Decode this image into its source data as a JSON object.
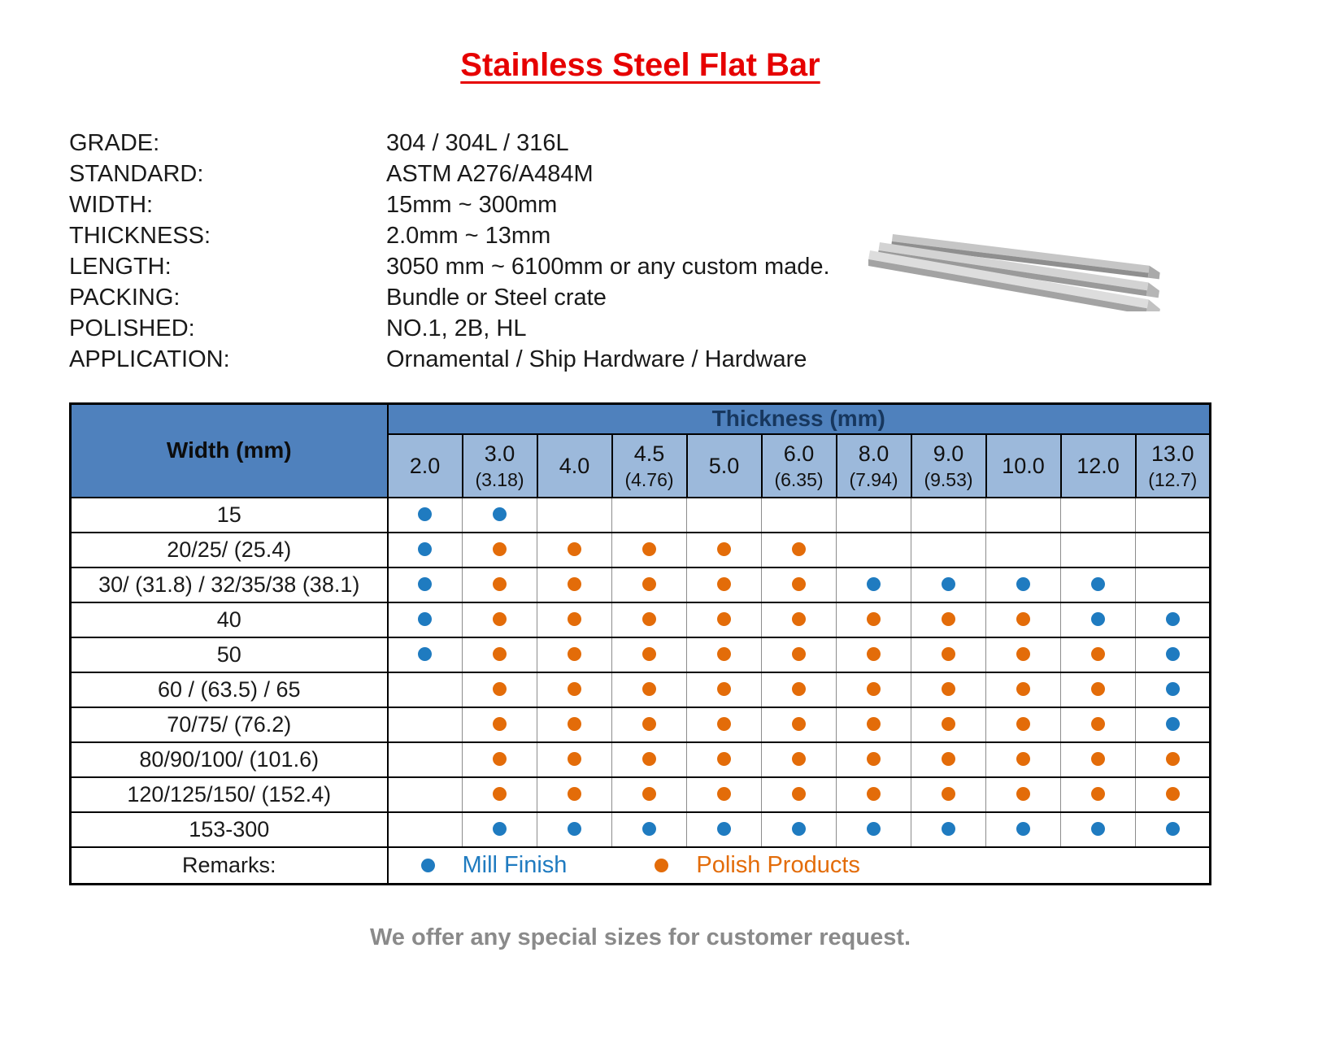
{
  "title": "Stainless Steel Flat Bar",
  "specs": [
    {
      "label": "GRADE:",
      "value": "304 / 304L / 316L"
    },
    {
      "label": "STANDARD:",
      "value": "ASTM A276/A484M"
    },
    {
      "label": "WIDTH:",
      "value": "15mm ~ 300mm"
    },
    {
      "label": "THICKNESS:",
      "value": "2.0mm ~ 13mm"
    },
    {
      "label": "LENGTH:",
      "value": "3050 mm ~ 6100mm or any custom made."
    },
    {
      "label": "PACKING:",
      "value": "Bundle or Steel crate"
    },
    {
      "label": "POLISHED:",
      "value": "NO.1, 2B, HL"
    },
    {
      "label": "APPLICATION:",
      "value": "Ornamental / Ship Hardware / Hardware"
    }
  ],
  "table": {
    "width_header": "Width  (mm)",
    "thickness_header": "Thickness  (mm)",
    "columns": [
      {
        "main": "2.0",
        "sub": ""
      },
      {
        "main": "3.0",
        "sub": "(3.18)"
      },
      {
        "main": "4.0",
        "sub": ""
      },
      {
        "main": "4.5",
        "sub": "(4.76)"
      },
      {
        "main": "5.0",
        "sub": ""
      },
      {
        "main": "6.0",
        "sub": "(6.35)"
      },
      {
        "main": "8.0",
        "sub": "(7.94)"
      },
      {
        "main": "9.0",
        "sub": "(9.53)"
      },
      {
        "main": "10.0",
        "sub": ""
      },
      {
        "main": "12.0",
        "sub": ""
      },
      {
        "main": "13.0",
        "sub": "(12.7)"
      }
    ],
    "rows": [
      {
        "width": "15",
        "dots": [
          "blue",
          "blue",
          "",
          "",
          "",
          "",
          "",
          "",
          "",
          "",
          ""
        ]
      },
      {
        "width": "20/25/ (25.4)",
        "dots": [
          "blue",
          "orange",
          "orange",
          "orange",
          "orange",
          "orange",
          "",
          "",
          "",
          "",
          ""
        ]
      },
      {
        "width": "30/ (31.8) / 32/35/38 (38.1)",
        "dots": [
          "blue",
          "orange",
          "orange",
          "orange",
          "orange",
          "orange",
          "blue",
          "blue",
          "blue",
          "blue",
          ""
        ]
      },
      {
        "width": "40",
        "dots": [
          "blue",
          "orange",
          "orange",
          "orange",
          "orange",
          "orange",
          "orange",
          "orange",
          "orange",
          "blue",
          "blue"
        ]
      },
      {
        "width": "50",
        "dots": [
          "blue",
          "orange",
          "orange",
          "orange",
          "orange",
          "orange",
          "orange",
          "orange",
          "orange",
          "orange",
          "blue"
        ]
      },
      {
        "width": "60 / (63.5) / 65",
        "dots": [
          "",
          "orange",
          "orange",
          "orange",
          "orange",
          "orange",
          "orange",
          "orange",
          "orange",
          "orange",
          "blue"
        ]
      },
      {
        "width": "70/75/ (76.2)",
        "dots": [
          "",
          "orange",
          "orange",
          "orange",
          "orange",
          "orange",
          "orange",
          "orange",
          "orange",
          "orange",
          "blue"
        ]
      },
      {
        "width": "80/90/100/ (101.6)",
        "dots": [
          "",
          "orange",
          "orange",
          "orange",
          "orange",
          "orange",
          "orange",
          "orange",
          "orange",
          "orange",
          "orange"
        ]
      },
      {
        "width": "120/125/150/ (152.4)",
        "dots": [
          "",
          "orange",
          "orange",
          "orange",
          "orange",
          "orange",
          "orange",
          "orange",
          "orange",
          "orange",
          "orange"
        ]
      },
      {
        "width": "153-300",
        "dots": [
          "",
          "blue",
          "blue",
          "blue",
          "blue",
          "blue",
          "blue",
          "blue",
          "blue",
          "blue",
          "blue"
        ]
      }
    ],
    "remarks": {
      "label": "Remarks:",
      "legend": [
        {
          "dot": "blue",
          "text": "Mill Finish"
        },
        {
          "dot": "orange",
          "text": "Polish Products"
        }
      ]
    }
  },
  "footer_note": "We offer any special sizes for customer request.",
  "colors": {
    "title_red": "#e60000",
    "header_dark_blue": "#4f81bd",
    "header_light_blue": "#9cb9db",
    "dot_blue": "#1f7bc0",
    "dot_orange": "#e36c09",
    "note_gray": "#8a8a8a"
  }
}
